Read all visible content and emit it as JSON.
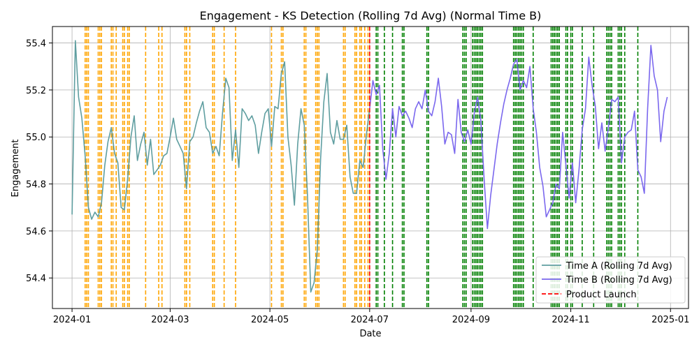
{
  "chart_data": {
    "type": "line",
    "title": "Engagement - KS Detection (Rolling 7d Avg) (Normal Time B)",
    "xlabel": "Date",
    "ylabel": "Engagement",
    "x_ticks": [
      "2024-01",
      "2024-03",
      "2024-05",
      "2024-07",
      "2024-09",
      "2024-11",
      "2025-01"
    ],
    "y_ticks": [
      "54.4",
      "54.6",
      "54.8",
      "55.0",
      "55.2",
      "55.4"
    ],
    "xlim": [
      "2023-12-20",
      "2025-01-12"
    ],
    "ylim": [
      54.27,
      55.47
    ],
    "grid": true,
    "legend_position": "bottom-right",
    "colors": {
      "time_a": "#5f9ea0",
      "time_b": "#7b68ee",
      "launch": "#ff0000",
      "ks_before": "#ffa500",
      "ks_after": "#008000"
    },
    "product_launch_date": "2024-07-01",
    "series": [
      {
        "name": "Time A (Rolling 7d Avg)",
        "x": [
          "2024-01-01",
          "2024-01-03",
          "2024-01-05",
          "2024-01-07",
          "2024-01-09",
          "2024-01-11",
          "2024-01-13",
          "2024-01-15",
          "2024-01-17",
          "2024-01-19",
          "2024-01-21",
          "2024-01-23",
          "2024-01-25",
          "2024-01-27",
          "2024-01-29",
          "2024-01-31",
          "2024-02-02",
          "2024-02-04",
          "2024-02-06",
          "2024-02-08",
          "2024-02-10",
          "2024-02-12",
          "2024-02-14",
          "2024-02-16",
          "2024-02-18",
          "2024-02-20",
          "2024-02-22",
          "2024-02-24",
          "2024-02-26",
          "2024-02-28",
          "2024-03-01",
          "2024-03-03",
          "2024-03-05",
          "2024-03-07",
          "2024-03-09",
          "2024-03-11",
          "2024-03-13",
          "2024-03-15",
          "2024-03-17",
          "2024-03-19",
          "2024-03-21",
          "2024-03-23",
          "2024-03-25",
          "2024-03-27",
          "2024-03-29",
          "2024-03-31",
          "2024-04-02",
          "2024-04-04",
          "2024-04-06",
          "2024-04-08",
          "2024-04-10",
          "2024-04-12",
          "2024-04-14",
          "2024-04-16",
          "2024-04-18",
          "2024-04-20",
          "2024-04-22",
          "2024-04-24",
          "2024-04-26",
          "2024-04-28",
          "2024-04-30",
          "2024-05-02",
          "2024-05-04",
          "2024-05-06",
          "2024-05-08",
          "2024-05-10",
          "2024-05-12",
          "2024-05-14",
          "2024-05-16",
          "2024-05-18",
          "2024-05-20",
          "2024-05-22",
          "2024-05-24",
          "2024-05-26",
          "2024-05-28",
          "2024-05-30",
          "2024-06-01",
          "2024-06-03",
          "2024-06-05",
          "2024-06-07",
          "2024-06-09",
          "2024-06-11",
          "2024-06-13",
          "2024-06-15",
          "2024-06-17",
          "2024-06-19",
          "2024-06-21",
          "2024-06-23",
          "2024-06-25",
          "2024-06-27",
          "2024-06-29",
          "2024-07-01"
        ],
        "values": [
          54.67,
          55.41,
          55.17,
          55.08,
          54.92,
          54.7,
          54.65,
          54.68,
          54.66,
          54.72,
          54.88,
          54.98,
          55.04,
          54.93,
          54.89,
          54.7,
          54.69,
          54.82,
          55.0,
          55.09,
          54.9,
          54.97,
          55.02,
          54.88,
          54.99,
          54.84,
          54.86,
          54.88,
          54.92,
          54.93,
          55.0,
          55.08,
          54.99,
          54.96,
          54.93,
          54.78,
          54.98,
          55.0,
          55.06,
          55.11,
          55.15,
          55.04,
          55.02,
          54.93,
          54.96,
          54.92,
          55.1,
          55.25,
          55.21,
          54.9,
          55.03,
          54.87,
          55.12,
          55.1,
          55.07,
          55.09,
          55.05,
          54.93,
          55.02,
          55.1,
          55.12,
          54.96,
          55.13,
          55.12,
          55.27,
          55.32,
          55.0,
          54.88,
          54.71,
          54.97,
          55.12,
          55.05,
          54.75,
          54.34,
          54.38,
          54.52,
          54.91,
          55.15,
          55.27,
          55.02,
          54.97,
          55.07,
          54.99,
          54.99,
          55.05,
          54.83,
          54.76,
          54.76,
          54.9,
          54.87,
          55.01,
          55.12
        ]
      },
      {
        "name": "Time B (Rolling 7d Avg)",
        "x": [
          "2024-07-01",
          "2024-07-03",
          "2024-07-05",
          "2024-07-07",
          "2024-07-09",
          "2024-07-11",
          "2024-07-13",
          "2024-07-15",
          "2024-07-17",
          "2024-07-19",
          "2024-07-21",
          "2024-07-23",
          "2024-07-25",
          "2024-07-27",
          "2024-07-29",
          "2024-07-31",
          "2024-08-02",
          "2024-08-04",
          "2024-08-06",
          "2024-08-08",
          "2024-08-10",
          "2024-08-12",
          "2024-08-14",
          "2024-08-16",
          "2024-08-18",
          "2024-08-20",
          "2024-08-22",
          "2024-08-24",
          "2024-08-26",
          "2024-08-28",
          "2024-08-30",
          "2024-09-01",
          "2024-09-03",
          "2024-09-05",
          "2024-09-07",
          "2024-09-09",
          "2024-09-11",
          "2024-09-13",
          "2024-09-15",
          "2024-09-17",
          "2024-09-19",
          "2024-09-21",
          "2024-09-23",
          "2024-09-25",
          "2024-09-27",
          "2024-09-29",
          "2024-10-01",
          "2024-10-03",
          "2024-10-05",
          "2024-10-07",
          "2024-10-09",
          "2024-10-11",
          "2024-10-13",
          "2024-10-15",
          "2024-10-17",
          "2024-10-19",
          "2024-10-21",
          "2024-10-23",
          "2024-10-25",
          "2024-10-27",
          "2024-10-29",
          "2024-10-31",
          "2024-11-02",
          "2024-11-04",
          "2024-11-06",
          "2024-11-08",
          "2024-11-10",
          "2024-11-12",
          "2024-11-14",
          "2024-11-16",
          "2024-11-18",
          "2024-11-20",
          "2024-11-22",
          "2024-11-24",
          "2024-11-26",
          "2024-11-28",
          "2024-11-30",
          "2024-12-02",
          "2024-12-04",
          "2024-12-06",
          "2024-12-08",
          "2024-12-10",
          "2024-12-12",
          "2024-12-14",
          "2024-12-16",
          "2024-12-18",
          "2024-12-20",
          "2024-12-22",
          "2024-12-24",
          "2024-12-26",
          "2024-12-28",
          "2024-12-30"
        ],
        "values": [
          55.12,
          55.24,
          55.18,
          55.22,
          54.95,
          54.82,
          54.93,
          55.12,
          55.0,
          55.13,
          55.09,
          55.11,
          55.08,
          55.04,
          55.12,
          55.15,
          55.12,
          55.2,
          55.11,
          55.09,
          55.15,
          55.25,
          55.13,
          54.97,
          55.02,
          55.01,
          54.93,
          55.16,
          55.02,
          54.98,
          55.03,
          54.97,
          55.1,
          55.17,
          55.07,
          54.82,
          54.61,
          54.75,
          54.86,
          54.97,
          55.06,
          55.14,
          55.2,
          55.25,
          55.31,
          55.33,
          55.2,
          55.24,
          55.21,
          55.3,
          55.12,
          55.02,
          54.87,
          54.79,
          54.66,
          54.69,
          54.72,
          54.8,
          54.78,
          55.02,
          54.88,
          54.74,
          54.89,
          54.72,
          54.86,
          55.03,
          55.12,
          55.34,
          55.22,
          55.13,
          54.95,
          55.06,
          54.94,
          55.04,
          55.16,
          55.15,
          55.17,
          54.89,
          55.0,
          55.02,
          55.03,
          55.11,
          54.86,
          54.83,
          54.76,
          55.12,
          55.39,
          55.26,
          55.2,
          54.98,
          55.11,
          55.17
        ]
      }
    ],
    "ks_lines_before": [
      "2024-01-09",
      "2024-01-10",
      "2024-01-11",
      "2024-01-17",
      "2024-01-18",
      "2024-01-19",
      "2024-01-25",
      "2024-01-26",
      "2024-01-28",
      "2024-02-01",
      "2024-02-02",
      "2024-02-04",
      "2024-02-05",
      "2024-02-15",
      "2024-02-23",
      "2024-02-25",
      "2024-03-10",
      "2024-03-11",
      "2024-03-13",
      "2024-03-27",
      "2024-03-28",
      "2024-04-03",
      "2024-04-10",
      "2024-05-02",
      "2024-05-08",
      "2024-05-09",
      "2024-05-22",
      "2024-05-23",
      "2024-05-29",
      "2024-05-30",
      "2024-05-31",
      "2024-06-15",
      "2024-06-16",
      "2024-06-22",
      "2024-06-23",
      "2024-06-25",
      "2024-06-26",
      "2024-06-28",
      "2024-06-30"
    ],
    "ks_lines_after": [
      "2024-07-05",
      "2024-07-06",
      "2024-07-10",
      "2024-07-15",
      "2024-07-21",
      "2024-07-22",
      "2024-08-05",
      "2024-08-06",
      "2024-08-27",
      "2024-08-28",
      "2024-08-29",
      "2024-09-02",
      "2024-09-03",
      "2024-09-04",
      "2024-09-05",
      "2024-09-06",
      "2024-09-07",
      "2024-09-08",
      "2024-09-27",
      "2024-09-28",
      "2024-09-29",
      "2024-09-30",
      "2024-10-01",
      "2024-10-02",
      "2024-10-03",
      "2024-10-09",
      "2024-10-20",
      "2024-10-21",
      "2024-10-22",
      "2024-10-23",
      "2024-10-24",
      "2024-10-25",
      "2024-10-29",
      "2024-10-30",
      "2024-11-01",
      "2024-11-02",
      "2024-11-08",
      "2024-11-15",
      "2024-11-23",
      "2024-11-24",
      "2024-11-25",
      "2024-11-26",
      "2024-11-30",
      "2024-12-01",
      "2024-12-02",
      "2024-12-04",
      "2024-12-12"
    ]
  }
}
